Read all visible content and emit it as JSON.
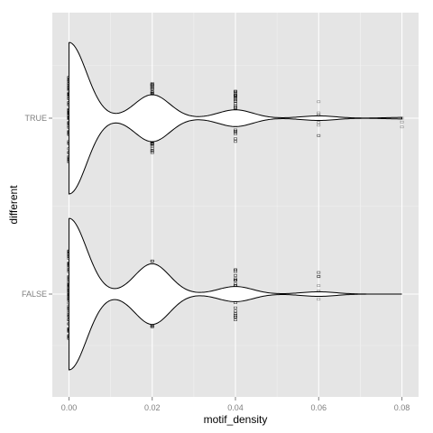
{
  "chart_data": {
    "type": "violin",
    "xlabel": "motif_density",
    "ylabel": "different",
    "xlim": [
      -0.004,
      0.084
    ],
    "x_ticks": [
      "0.00",
      "0.02",
      "0.04",
      "0.06",
      "0.08"
    ],
    "x_tick_values": [
      0.0,
      0.02,
      0.04,
      0.06,
      0.08
    ],
    "categories": [
      "FALSE",
      "TRUE"
    ],
    "grid": true,
    "colors": {
      "panel_background": "#e5e5e5",
      "grid_major": "#ffffff",
      "grid_minor": "#f2f2f2",
      "violin_fill": "#ffffff",
      "violin_outline": "#000000",
      "points": "#000000"
    },
    "series": [
      {
        "category": "TRUE",
        "density_max_share": 1.0,
        "peaks": [
          {
            "x": 0.0,
            "relative_height": 1.0
          },
          {
            "x": 0.02,
            "relative_height": 0.31
          },
          {
            "x": 0.04,
            "relative_height": 0.11
          },
          {
            "x": 0.06,
            "relative_height": 0.03
          },
          {
            "x": 0.08,
            "relative_height": 0.01
          }
        ],
        "point_values": [
          0.0,
          0.02,
          0.04,
          0.06,
          0.08
        ]
      },
      {
        "category": "FALSE",
        "density_max_share": 1.0,
        "peaks": [
          {
            "x": 0.0,
            "relative_height": 1.0
          },
          {
            "x": 0.02,
            "relative_height": 0.4
          },
          {
            "x": 0.04,
            "relative_height": 0.1
          },
          {
            "x": 0.06,
            "relative_height": 0.03
          },
          {
            "x": 0.08,
            "relative_height": 0.0
          }
        ],
        "point_values": [
          0.0,
          0.02,
          0.04,
          0.06
        ]
      }
    ]
  }
}
